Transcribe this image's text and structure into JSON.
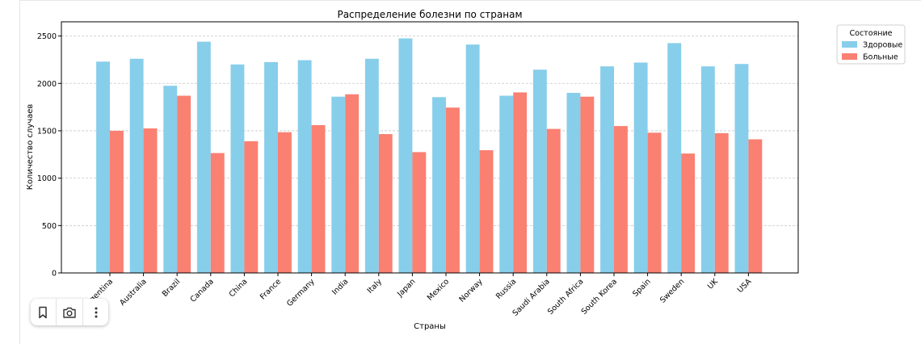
{
  "chart_data": {
    "type": "bar",
    "title": "Распределение болезни по странам",
    "xlabel": "Страны",
    "ylabel": "Количество случаев",
    "ylim": [
      0,
      2650
    ],
    "yticks": [
      0,
      500,
      1000,
      1500,
      2000,
      2500
    ],
    "grid": "y-dashed",
    "legend_title": "Состояние",
    "legend_placement": "outside-top-right",
    "categories": [
      "Argentina",
      "Australia",
      "Brazil",
      "Canada",
      "China",
      "France",
      "Germany",
      "India",
      "Italy",
      "Japan",
      "Mexico",
      "Norway",
      "Russia",
      "Saudi Arabia",
      "South Africa",
      "South Korea",
      "Spain",
      "Sweden",
      "UK",
      "USA"
    ],
    "series": [
      {
        "name": "Здоровые",
        "color": "#87ceeb",
        "values": [
          2230,
          2260,
          1975,
          2440,
          2200,
          2225,
          2245,
          1860,
          2260,
          2475,
          1855,
          2410,
          1870,
          2145,
          1900,
          2180,
          2220,
          2425,
          2180,
          2205
        ]
      },
      {
        "name": "Больные",
        "color": "#fa8072",
        "values": [
          1500,
          1525,
          1870,
          1265,
          1390,
          1485,
          1560,
          1885,
          1465,
          1275,
          1745,
          1295,
          1905,
          1520,
          1860,
          1550,
          1480,
          1260,
          1475,
          1410
        ]
      }
    ]
  },
  "toolbar": {
    "items": [
      {
        "name": "bookmark-icon"
      },
      {
        "name": "camera-icon"
      },
      {
        "name": "more-vertical-icon"
      }
    ]
  }
}
